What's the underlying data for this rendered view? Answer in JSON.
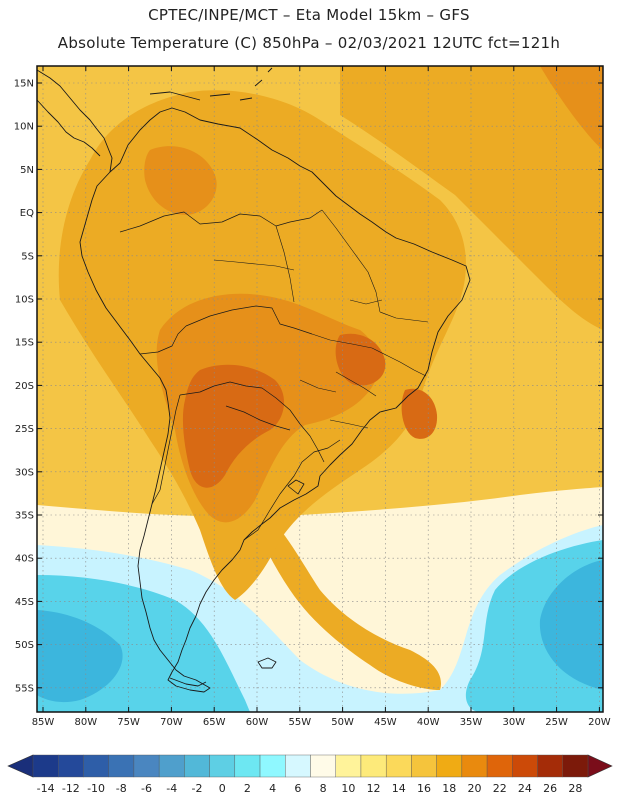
{
  "title_line1": "CPTEC/INPE/MCT –  Eta Model 15km – GFS",
  "title_line2": "Absolute Temperature (C) 850hPa – 02/03/2021 12UTC fct=121h",
  "lat_labels": [
    "15N",
    "10N",
    "5N",
    "EQ",
    "5S",
    "10S",
    "15S",
    "20S",
    "25S",
    "30S",
    "35S",
    "40S",
    "45S",
    "50S",
    "55S"
  ],
  "lon_labels": [
    "85W",
    "80W",
    "75W",
    "70W",
    "65W",
    "60W",
    "55W",
    "50W",
    "45W",
    "40W",
    "35W",
    "30W",
    "25W",
    "20W"
  ],
  "colorbar": {
    "labels": [
      "-14",
      "-12",
      "-10",
      "-8",
      "-6",
      "-4",
      "-2",
      "0",
      "2",
      "4",
      "6",
      "8",
      "10",
      "12",
      "14",
      "16",
      "18",
      "20",
      "22",
      "24",
      "26",
      "28"
    ],
    "colors": [
      "#1c3a8a",
      "#24499a",
      "#2e5ea8",
      "#3a72b4",
      "#4a86c0",
      "#4f9fcc",
      "#52b8d8",
      "#5ecfe4",
      "#6de7f2",
      "#8ff8ff",
      "#d6f8ff",
      "#fffbe8",
      "#fff39a",
      "#fdea7a",
      "#fbd95a",
      "#f5c43c",
      "#f0ab14",
      "#e98a0e",
      "#df650a",
      "#cc4a08",
      "#a42c08",
      "#7c1a0a"
    ],
    "low_end_color": "#1a2f7a",
    "high_end_color": "#7a0d1a"
  },
  "map": {
    "ocean_color": "#f4c545",
    "land_color": "#ecab24",
    "hot_color": "#d86a14",
    "warm_orange": "#e6901a",
    "cold_light": "#c8f3ff",
    "cold_mid": "#58d3ea",
    "cold_deep": "#3cb6dd",
    "pale": "#fff6d8"
  }
}
